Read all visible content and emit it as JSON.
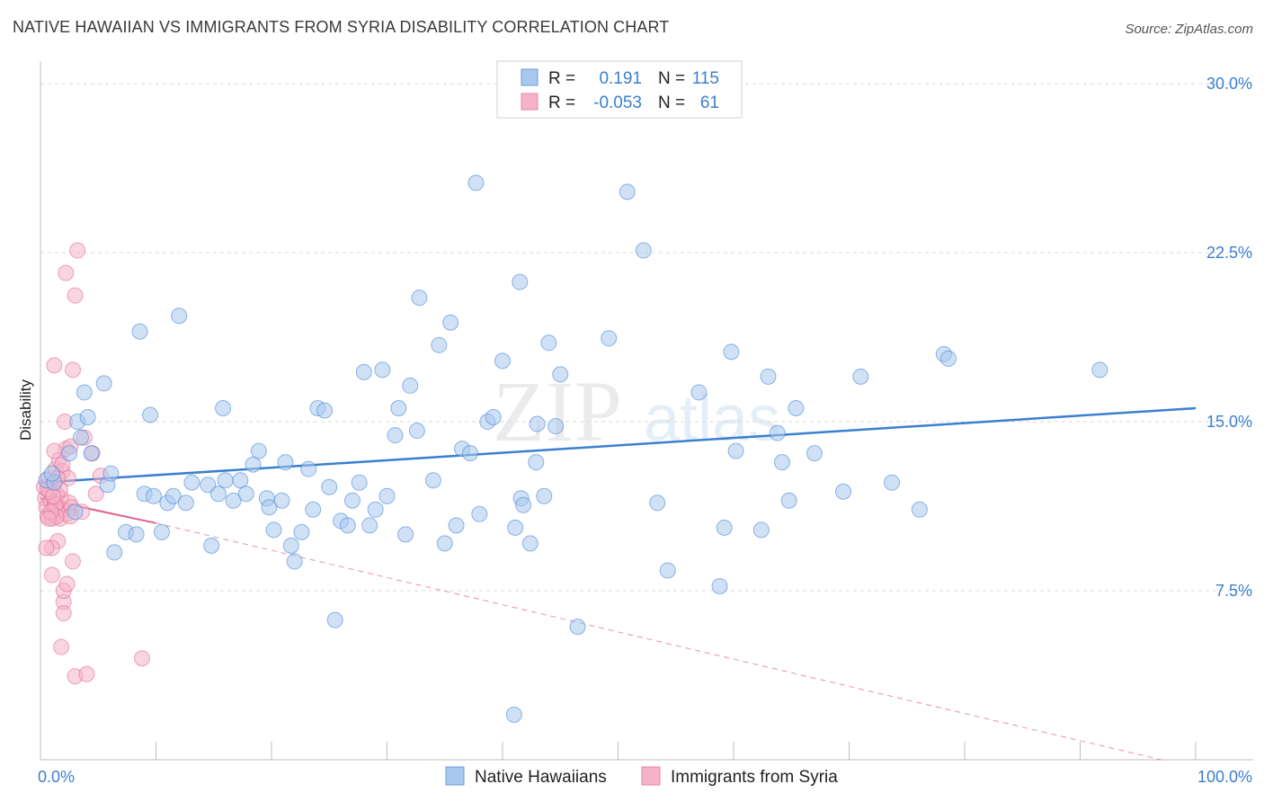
{
  "title": "NATIVE HAWAIIAN VS IMMIGRANTS FROM SYRIA DISABILITY CORRELATION CHART",
  "source": "Source: ZipAtlas.com",
  "watermark": {
    "zip": "ZIP",
    "atlas": "atlas"
  },
  "colors": {
    "blue": "#3b7fd0",
    "blue_fill": "#a9c8ef",
    "pink": "#e0608f",
    "pink_fill": "#f4b3c9",
    "grid": "#d8d8d8",
    "axis_text": "#3b7fd0"
  },
  "legend_top": [
    {
      "r_label": "R =",
      "r_value": "0.191",
      "n_label": "N =",
      "n_value": "115",
      "color": "blue"
    },
    {
      "r_label": "R =",
      "r_value": "-0.053",
      "n_label": "N =",
      "n_value": "61",
      "color": "pink"
    }
  ],
  "legend_bottom": [
    {
      "label": "Native Hawaiians",
      "color": "blue"
    },
    {
      "label": "Immigrants from Syria",
      "color": "pink"
    }
  ],
  "chart_data": {
    "type": "scatter",
    "title": "NATIVE HAWAIIAN VS IMMIGRANTS FROM SYRIA DISABILITY CORRELATION CHART",
    "xlabel": "",
    "ylabel": "Disability",
    "xlim": [
      0,
      100
    ],
    "ylim": [
      0,
      31
    ],
    "x_tick_labels": [
      "0.0%",
      "100.0%"
    ],
    "y_ticks": [
      7.5,
      15.0,
      22.5,
      30.0
    ],
    "y_tick_labels": [
      "7.5%",
      "15.0%",
      "22.5%",
      "30.0%"
    ],
    "grid": true,
    "series": [
      {
        "name": "Native Hawaiians",
        "color": "blue",
        "trend": {
          "x": [
            0,
            100
          ],
          "y": [
            12.3,
            15.6
          ],
          "style": "solid"
        },
        "points": [
          [
            0.5,
            12.4
          ],
          [
            1.2,
            12.3
          ],
          [
            2.5,
            13.6
          ],
          [
            3,
            11.0
          ],
          [
            3.2,
            15.0
          ],
          [
            3.8,
            16.3
          ],
          [
            4.1,
            15.2
          ],
          [
            4.4,
            13.6
          ],
          [
            5.5,
            16.7
          ],
          [
            5.8,
            12.2
          ],
          [
            6.4,
            9.2
          ],
          [
            7.4,
            10.1
          ],
          [
            8.3,
            10.0
          ],
          [
            8.6,
            19.0
          ],
          [
            9,
            11.8
          ],
          [
            9.8,
            11.7
          ],
          [
            10.5,
            10.1
          ],
          [
            11,
            11.4
          ],
          [
            11.5,
            11.7
          ],
          [
            12,
            19.7
          ],
          [
            12.6,
            11.4
          ],
          [
            13.1,
            12.3
          ],
          [
            14.5,
            12.2
          ],
          [
            14.8,
            9.5
          ],
          [
            15.4,
            11.8
          ],
          [
            15.8,
            15.6
          ],
          [
            16,
            12.4
          ],
          [
            16.7,
            11.5
          ],
          [
            17.3,
            12.4
          ],
          [
            17.8,
            11.8
          ],
          [
            18.4,
            13.1
          ],
          [
            18.9,
            13.7
          ],
          [
            19.6,
            11.6
          ],
          [
            19.8,
            11.2
          ],
          [
            20.2,
            10.2
          ],
          [
            20.9,
            11.5
          ],
          [
            21.2,
            13.2
          ],
          [
            21.7,
            9.5
          ],
          [
            22.0,
            8.8
          ],
          [
            22.6,
            10.1
          ],
          [
            23.2,
            12.9
          ],
          [
            23.6,
            11.1
          ],
          [
            24,
            15.6
          ],
          [
            24.6,
            15.5
          ],
          [
            25,
            12.1
          ],
          [
            25.5,
            6.2
          ],
          [
            26,
            10.6
          ],
          [
            26.6,
            10.4
          ],
          [
            27.0,
            11.5
          ],
          [
            27.6,
            12.3
          ],
          [
            28,
            17.2
          ],
          [
            28.5,
            10.4
          ],
          [
            29,
            11.1
          ],
          [
            29.6,
            17.3
          ],
          [
            30,
            11.7
          ],
          [
            30.7,
            14.4
          ],
          [
            31,
            15.6
          ],
          [
            31.6,
            10.0
          ],
          [
            32,
            16.6
          ],
          [
            32.6,
            14.6
          ],
          [
            32.8,
            20.5
          ],
          [
            34,
            12.4
          ],
          [
            34.5,
            18.4
          ],
          [
            35,
            9.6
          ],
          [
            35.5,
            19.4
          ],
          [
            36,
            10.4
          ],
          [
            36.5,
            13.8
          ],
          [
            37.2,
            13.6
          ],
          [
            37.7,
            25.6
          ],
          [
            38,
            10.9
          ],
          [
            38.7,
            15.0
          ],
          [
            39.2,
            15.2
          ],
          [
            40,
            17.7
          ],
          [
            41.1,
            10.3
          ],
          [
            41.6,
            11.6
          ],
          [
            41.8,
            11.3
          ],
          [
            41.5,
            21.2
          ],
          [
            42.4,
            9.6
          ],
          [
            42.9,
            13.2
          ],
          [
            43,
            14.9
          ],
          [
            43.6,
            11.7
          ],
          [
            44,
            18.5
          ],
          [
            44.6,
            14.8
          ],
          [
            45,
            17.1
          ],
          [
            46.5,
            5.9
          ],
          [
            49.2,
            18.7
          ],
          [
            50.8,
            25.2
          ],
          [
            52.2,
            22.6
          ],
          [
            53.4,
            11.4
          ],
          [
            54.3,
            8.4
          ],
          [
            57.0,
            16.3
          ],
          [
            58.8,
            7.7
          ],
          [
            59.2,
            10.3
          ],
          [
            59.8,
            18.1
          ],
          [
            60.2,
            13.7
          ],
          [
            62.4,
            10.2
          ],
          [
            63,
            17.0
          ],
          [
            63.8,
            14.5
          ],
          [
            64.2,
            13.2
          ],
          [
            64.8,
            11.5
          ],
          [
            65.4,
            15.6
          ],
          [
            67.0,
            13.6
          ],
          [
            69.5,
            11.9
          ],
          [
            71.0,
            17.0
          ],
          [
            73.7,
            12.3
          ],
          [
            76.1,
            11.1
          ],
          [
            78.2,
            18.0
          ],
          [
            78.6,
            17.8
          ],
          [
            91.7,
            17.3
          ],
          [
            41.0,
            2.0
          ],
          [
            9.5,
            15.3
          ],
          [
            3.5,
            14.3
          ],
          [
            6.1,
            12.7
          ],
          [
            1.0,
            12.7
          ]
        ]
      },
      {
        "name": "Immigrants from Syria",
        "color": "pink",
        "trend": {
          "x": [
            0,
            10
          ],
          "y": [
            11.6,
            10.5
          ],
          "style": "solid",
          "extension": {
            "x": [
              10,
              97
            ],
            "y": [
              10.5,
              0.0
            ],
            "style": "dashed"
          }
        },
        "points": [
          [
            0.3,
            12.1
          ],
          [
            0.4,
            11.6
          ],
          [
            0.5,
            11.2
          ],
          [
            0.6,
            10.8
          ],
          [
            0.7,
            12.5
          ],
          [
            0.8,
            11.9
          ],
          [
            0.9,
            11.5
          ],
          [
            1.0,
            10.9
          ],
          [
            1.1,
            12.2
          ],
          [
            1.2,
            11.3
          ],
          [
            1.3,
            12.9
          ],
          [
            1.4,
            11.8
          ],
          [
            1.5,
            11.0
          ],
          [
            1.6,
            13.3
          ],
          [
            1.7,
            10.7
          ],
          [
            1.8,
            11.6
          ],
          [
            1.9,
            12.8
          ],
          [
            2.0,
            11.1
          ],
          [
            2.1,
            15.0
          ],
          [
            2.2,
            13.8
          ],
          [
            2.3,
            10.9
          ],
          [
            2.4,
            12.5
          ],
          [
            2.5,
            11.4
          ],
          [
            2.6,
            13.9
          ],
          [
            2.7,
            11.2
          ],
          [
            2.8,
            17.3
          ],
          [
            3.0,
            20.6
          ],
          [
            3.2,
            22.6
          ],
          [
            2.2,
            21.6
          ],
          [
            1.2,
            17.5
          ],
          [
            2.0,
            7.0
          ],
          [
            2.0,
            6.5
          ],
          [
            1.8,
            5.0
          ],
          [
            2.0,
            7.5
          ],
          [
            2.3,
            7.8
          ],
          [
            3.0,
            3.7
          ],
          [
            4.0,
            3.8
          ],
          [
            1.0,
            8.2
          ],
          [
            1.5,
            9.7
          ],
          [
            1.0,
            9.4
          ],
          [
            2.8,
            8.8
          ],
          [
            1.2,
            13.7
          ],
          [
            1.5,
            12.5
          ],
          [
            4.5,
            13.6
          ],
          [
            4.8,
            11.8
          ],
          [
            5.2,
            12.6
          ],
          [
            1.0,
            10.7
          ],
          [
            0.8,
            11.9
          ],
          [
            1.3,
            11.3
          ],
          [
            0.6,
            12.0
          ],
          [
            1.7,
            12.0
          ],
          [
            1.4,
            10.8
          ],
          [
            1.1,
            11.7
          ],
          [
            0.9,
            11.0
          ],
          [
            8.8,
            4.5
          ],
          [
            3.6,
            11.0
          ],
          [
            0.5,
            9.4
          ],
          [
            1.9,
            13.1
          ],
          [
            2.6,
            10.8
          ],
          [
            3.8,
            14.3
          ],
          [
            0.7,
            10.7
          ]
        ]
      }
    ]
  }
}
